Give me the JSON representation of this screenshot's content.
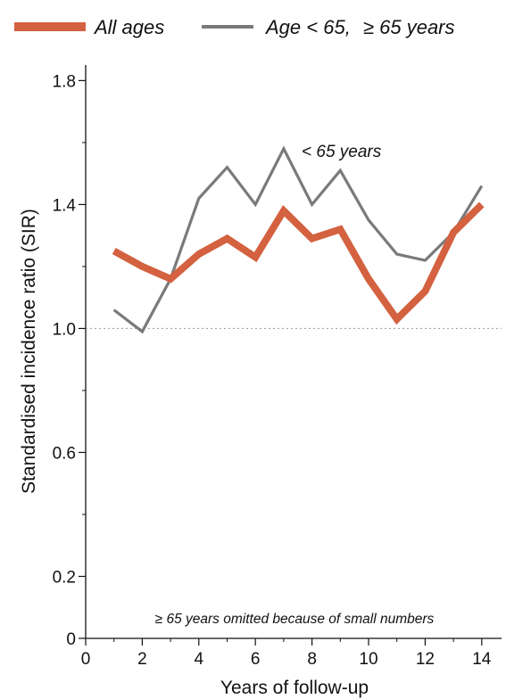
{
  "chart_data": {
    "type": "line",
    "title": "",
    "xlabel": "Years of follow-up",
    "ylabel": "Standardised incidence ratio (SIR)",
    "xlim": [
      0,
      14.7
    ],
    "ylim": [
      0,
      1.85
    ],
    "x_ticks": [
      0,
      2,
      4,
      6,
      8,
      10,
      12,
      14
    ],
    "x_tick_labels": [
      "0",
      "2",
      "4",
      "6",
      "8",
      "10",
      "12",
      "14"
    ],
    "x_minor_ticks": [
      1,
      3,
      5,
      7,
      9,
      11,
      13
    ],
    "y_ticks": [
      0,
      0.2,
      0.6,
      1.0,
      1.4,
      1.8
    ],
    "y_tick_labels": [
      "0",
      "0.2",
      "0.6",
      "1.0",
      "1.4",
      "1.8"
    ],
    "y_minor_ticks": [
      0.4,
      0.8,
      1.2,
      1.6
    ],
    "reference_line": {
      "y": 1.0,
      "style": "dotted"
    },
    "grid": false,
    "legend_position": "top",
    "legend": [
      {
        "label": "All ages",
        "color": "#d4613f",
        "key": "all"
      },
      {
        "label": "Age < 65,",
        "label_suffix": "≥ 65 years",
        "color": "#7a7a7a",
        "key": "under65"
      }
    ],
    "series": [
      {
        "key": "under65",
        "color": "#7a7a7a",
        "x": [
          1,
          2,
          3,
          4,
          5,
          6,
          7,
          8,
          9,
          10,
          11,
          12,
          13,
          14
        ],
        "values": [
          1.06,
          0.99,
          1.16,
          1.42,
          1.52,
          1.4,
          1.58,
          1.4,
          1.51,
          1.35,
          1.24,
          1.22,
          1.31,
          1.46
        ]
      },
      {
        "key": "all",
        "color": "#d4613f",
        "x": [
          1,
          2,
          3,
          4,
          5,
          6,
          7,
          8,
          9,
          10,
          11,
          12,
          13,
          14
        ],
        "values": [
          1.25,
          1.2,
          1.16,
          1.24,
          1.29,
          1.23,
          1.38,
          1.29,
          1.32,
          1.16,
          1.03,
          1.12,
          1.31,
          1.4
        ]
      }
    ],
    "annotations": [
      {
        "text": "< 65 years"
      },
      {
        "text": "≥ 65 years omitted because of small numbers"
      }
    ]
  }
}
